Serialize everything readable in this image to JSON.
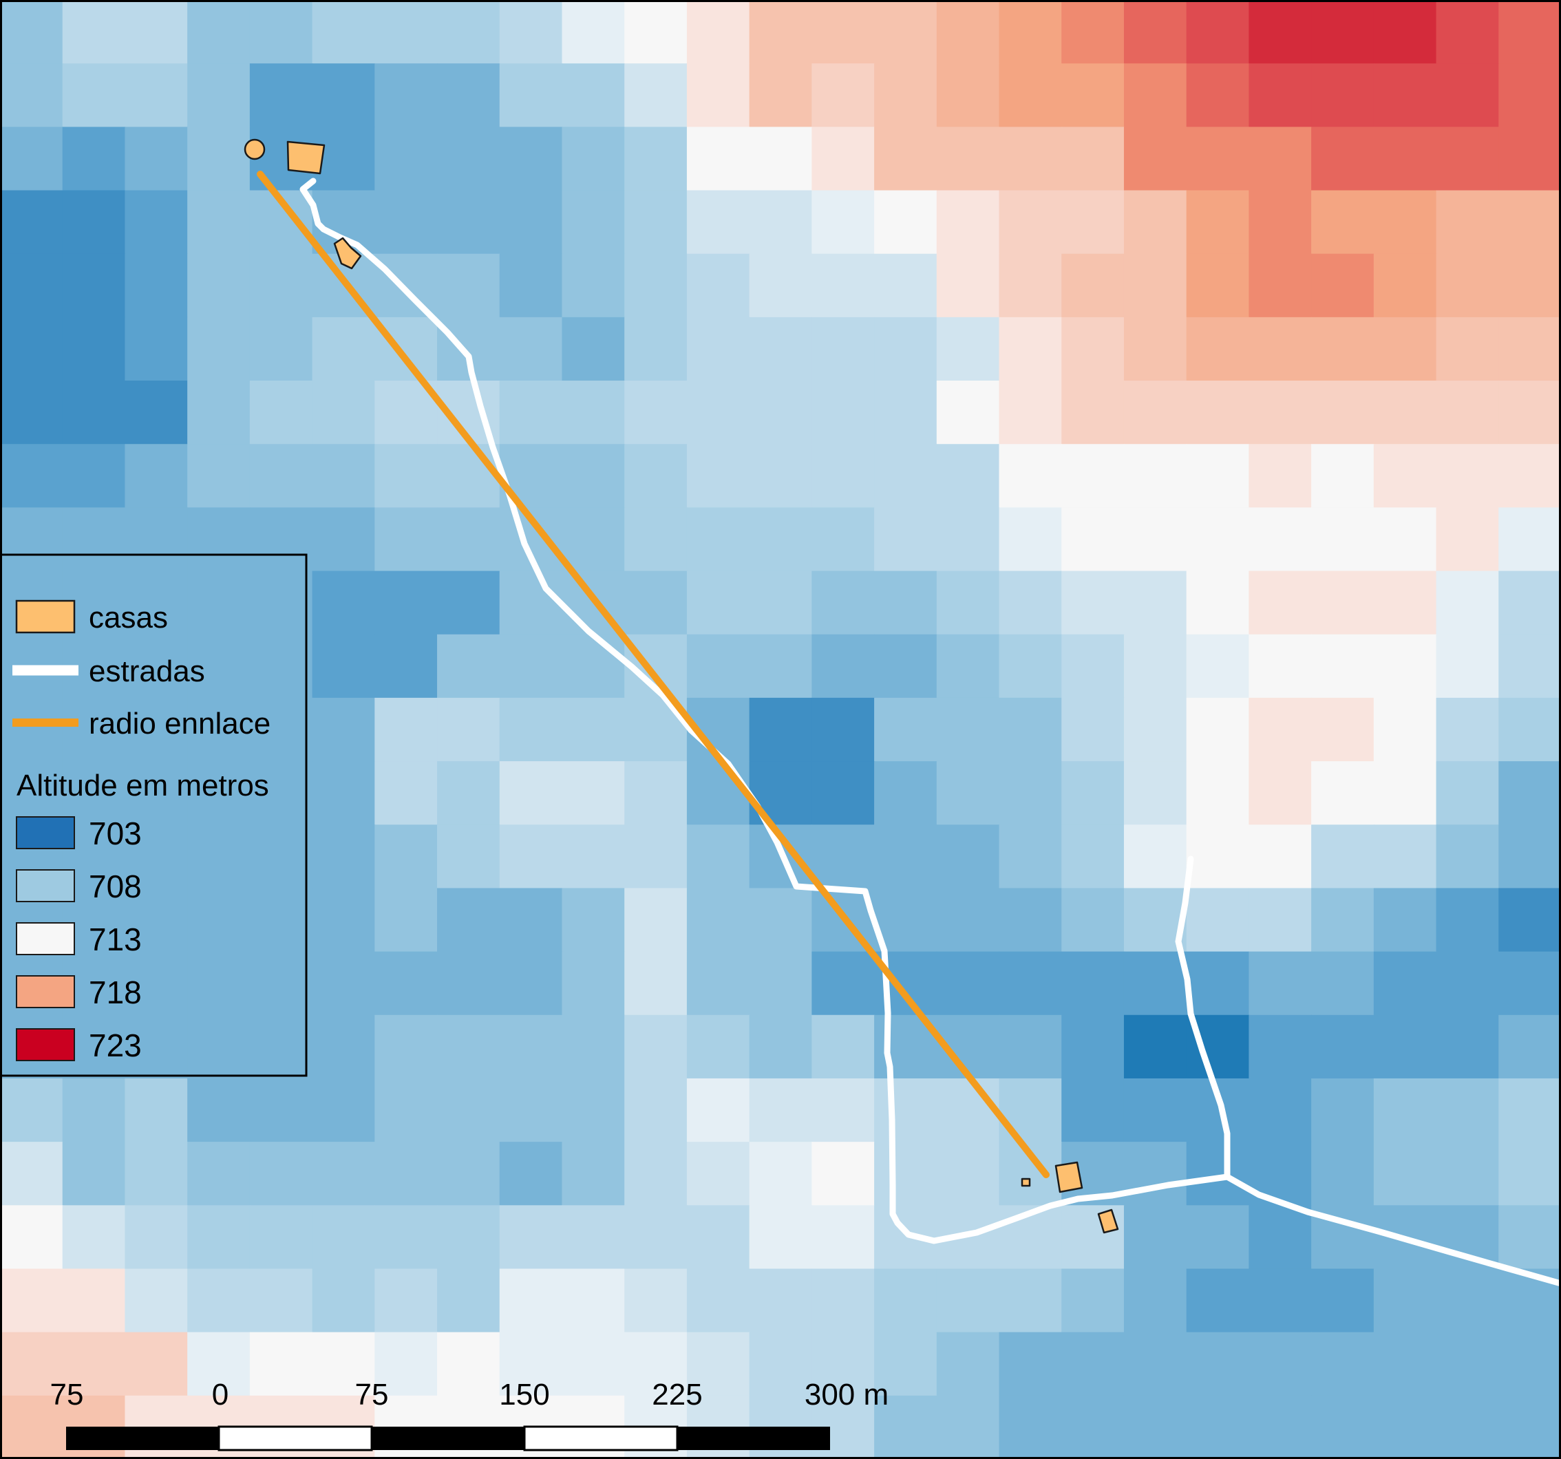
{
  "map": {
    "palette": {
      "c0": "#1f7bb6",
      "c1": "#3f8fc4",
      "c2": "#5aa2cf",
      "c3": "#78b4d7",
      "c4": "#93c4df",
      "c5": "#a9d0e5",
      "c6": "#bbd9ea",
      "c7": "#d1e4ef",
      "c8": "#e5eff5",
      "c9": "#f7f7f7",
      "c10": "#f9e4de",
      "c11": "#f7d1c3",
      "c12": "#f6c3ae",
      "c13": "#f5b498",
      "c14": "#f4a582",
      "c15": "#ef8a70",
      "c16": "#e6665d",
      "c17": "#de4b50",
      "c18": "#d42b3b"
    },
    "layers": {
      "houses_color": "#fdbf6f",
      "roads_color": "#ffffff",
      "radio_link_color": "#f39c1e"
    }
  },
  "legend": {
    "items": [
      {
        "label": "casas",
        "symbol": "house"
      },
      {
        "label": "estradas",
        "symbol": "road"
      },
      {
        "label": "radio ennlace",
        "symbol": "radio"
      }
    ],
    "altitude_title": "Altitude em metros",
    "altitude_classes": [
      {
        "label": "703",
        "color": "#2171b5"
      },
      {
        "label": "708",
        "color": "#9ecae1"
      },
      {
        "label": "713",
        "color": "#f7f7f7"
      },
      {
        "label": "718",
        "color": "#f4a582"
      },
      {
        "label": "723",
        "color": "#ca0020"
      }
    ]
  },
  "scale_bar": {
    "ticks": [
      "75",
      "0",
      "75",
      "150",
      "225",
      "300 m"
    ]
  }
}
